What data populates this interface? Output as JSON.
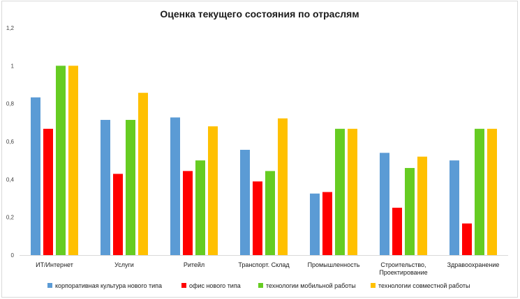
{
  "chart_data": {
    "type": "bar",
    "title": "Оценка текущего состояния по отраслям",
    "xlabel": "",
    "ylabel": "",
    "ylim": [
      0,
      1.2
    ],
    "yticks": [
      "0",
      "0,2",
      "0,4",
      "0,6",
      "0,8",
      "1",
      "1,2"
    ],
    "grid": false,
    "legend_position": "bottom",
    "categories": [
      [
        "ИТ/Интернет"
      ],
      [
        "Услуги"
      ],
      [
        "Ритейл"
      ],
      [
        "Транспорт.  Склад"
      ],
      [
        "Промышленность"
      ],
      [
        "Строительство,",
        "Проектирование"
      ],
      [
        "Здравоохранение"
      ]
    ],
    "series": [
      {
        "name": "корпоративная  культура  нового  типа",
        "color": "#5b9bd5",
        "values": [
          0.833,
          0.714,
          0.727,
          0.556,
          0.325,
          0.54,
          0.5
        ]
      },
      {
        "name": "офис нового  типа",
        "color": "#ff0000",
        "values": [
          0.667,
          0.429,
          0.444,
          0.389,
          0.333,
          0.25,
          0.167
        ]
      },
      {
        "name": "технологии мобильной работы",
        "color": "#66cc22",
        "values": [
          1.0,
          0.714,
          0.5,
          0.444,
          0.667,
          0.46,
          0.667
        ]
      },
      {
        "name": "технологии совместной работы",
        "color": "#ffc000",
        "values": [
          1.0,
          0.857,
          0.68,
          0.722,
          0.667,
          0.52,
          0.667
        ]
      }
    ]
  }
}
